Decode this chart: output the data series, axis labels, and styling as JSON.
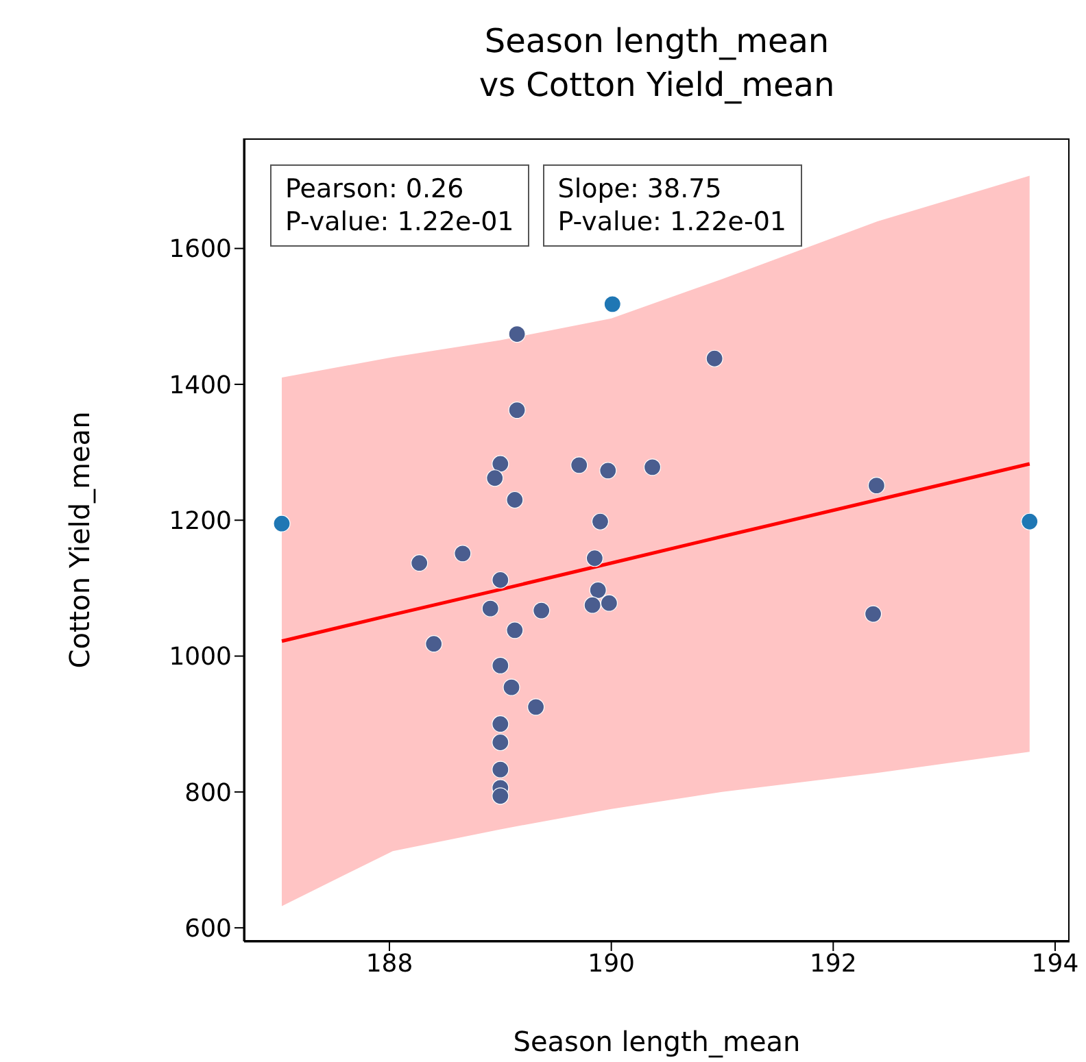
{
  "chart_data": {
    "type": "scatter",
    "title": "Season length_mean\nvs Cotton Yield_mean",
    "xlabel": "Season length_mean",
    "ylabel": "Cotton Yield_mean",
    "xlim": [
      186.69,
      194.13
    ],
    "xticks": [
      188,
      190,
      192,
      194
    ],
    "ylim": [
      580,
      1762
    ],
    "yticks": [
      600,
      800,
      1000,
      1200,
      1400,
      1600
    ],
    "marker": "circle",
    "series": [
      {
        "color": "#4a5d8f",
        "x": [
          189.15,
          189.15,
          189.0,
          188.95,
          189.13,
          189.71,
          189.97,
          190.37,
          189.9,
          190.93,
          192.39,
          189.85,
          189.88,
          189.83,
          189.98,
          192.36,
          188.27,
          188.66,
          189.0,
          188.91,
          189.37,
          189.13,
          188.4,
          189.0,
          189.1,
          189.32,
          189.0,
          189.0,
          189.0,
          189.0,
          189.0
        ],
        "values": [
          1474,
          1362,
          1283,
          1262,
          1230,
          1281,
          1273,
          1278,
          1198,
          1438,
          1251,
          1144,
          1097,
          1075,
          1078,
          1062,
          1137,
          1151,
          1112,
          1070,
          1067,
          1038,
          1018,
          986,
          954,
          925,
          900,
          873,
          833,
          806,
          794
        ]
      },
      {
        "color": "#1f77b4",
        "x": [
          187.03,
          190.01,
          193.77
        ],
        "values": [
          1195,
          1518,
          1198
        ]
      },
      {
        "type": "line",
        "color": "#ff0000",
        "marker": "none",
        "x": [
          187.03,
          188.03,
          189.0,
          190.0,
          191.0,
          192.4,
          193.77
        ],
        "values": [
          1022,
          1061,
          1098,
          1137,
          1176,
          1230,
          1283
        ],
        "lower": [
          632,
          713,
          745,
          775,
          800,
          828,
          859
        ],
        "upper": [
          1410,
          1440,
          1465,
          1497,
          1555,
          1640,
          1707
        ]
      }
    ],
    "annotations": [
      "Pearson: 0.26\nP-value: 1.22e-01",
      "Slope: 38.75\nP-value: 1.22e-01"
    ]
  }
}
